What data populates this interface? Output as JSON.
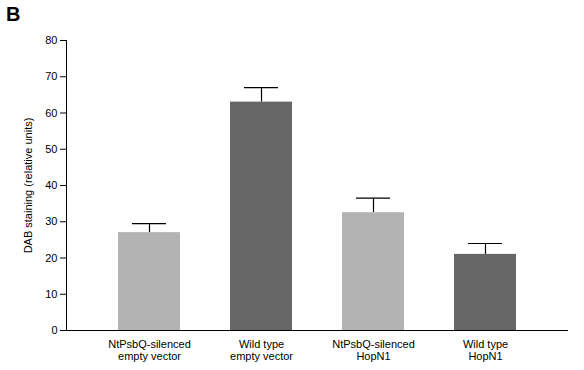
{
  "chart_data": {
    "type": "bar",
    "title": "B",
    "y_label": "DAB staining (relative units)",
    "categories": [
      "NtPsbQ-silenced\nempty vector",
      "Wild type\nempty vector",
      "NtPsbQ-silenced\nHopN1",
      "Wild type\nHopN1"
    ],
    "values": [
      27,
      63,
      32.5,
      21
    ],
    "errors": [
      2.5,
      4,
      4,
      3
    ],
    "colors": [
      "#b3b3b3",
      "#666666",
      "#b3b3b3",
      "#666666"
    ],
    "ylim": [
      0,
      80
    ],
    "yticks": [
      0,
      10,
      20,
      30,
      40,
      50,
      60,
      70,
      80
    ],
    "grid": false
  }
}
